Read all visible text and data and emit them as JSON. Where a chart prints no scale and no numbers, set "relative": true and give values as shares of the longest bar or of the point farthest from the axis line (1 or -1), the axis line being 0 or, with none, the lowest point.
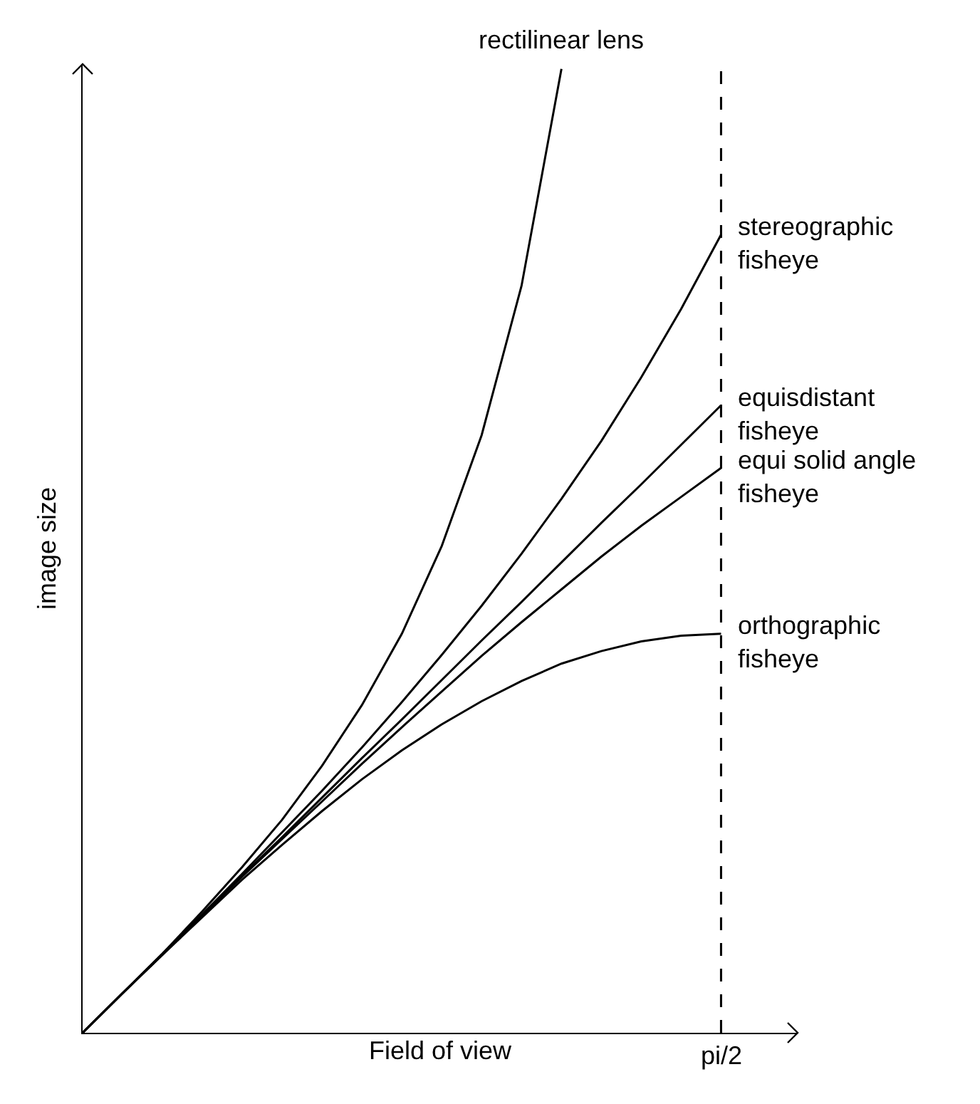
{
  "chart_data": {
    "type": "line",
    "relative": true,
    "xlabel": "Field of view",
    "ylabel": "image size",
    "categories": [
      null,
      null,
      null,
      null,
      null,
      null,
      null,
      null,
      null,
      null,
      null,
      null,
      null,
      null,
      null,
      null,
      null
    ],
    "ref_lines": [
      {
        "axis": "x",
        "label": "pi/2",
        "line_style": "dashed",
        "color": "#000000"
      }
    ],
    "marker": "none",
    "line_style": "solid",
    "grid": false,
    "legend": false,
    "series": [
      {
        "name": "rectilinear lens",
        "color": "#000000",
        "values": [
          0,
          0.041,
          0.082,
          0.126,
          0.172,
          0.221,
          0.277,
          0.34,
          0.414,
          0.505,
          0.62,
          0.775,
          1.0,
          null,
          null,
          null,
          null
        ]
      },
      {
        "name": "stereographic\nfisheye",
        "color": "#000000",
        "values": [
          0,
          0.041,
          0.082,
          0.123,
          0.165,
          0.208,
          0.251,
          0.296,
          0.343,
          0.392,
          0.443,
          0.497,
          0.554,
          0.614,
          0.68,
          0.751,
          0.828
        ]
      },
      {
        "name": "equisdistant\nfisheye",
        "color": "#000000",
        "values": [
          0,
          0.041,
          0.081,
          0.122,
          0.163,
          0.203,
          0.244,
          0.285,
          0.325,
          0.366,
          0.407,
          0.447,
          0.488,
          0.529,
          0.569,
          0.61,
          0.651
        ]
      },
      {
        "name": "equi solid angle\nfisheye",
        "color": "#000000",
        "values": [
          0,
          0.041,
          0.081,
          0.122,
          0.162,
          0.201,
          0.24,
          0.279,
          0.317,
          0.354,
          0.391,
          0.426,
          0.46,
          0.494,
          0.526,
          0.556,
          0.586
        ]
      },
      {
        "name": "orthographic\nfisheye",
        "color": "#000000",
        "values": [
          0,
          0.041,
          0.081,
          0.12,
          0.159,
          0.195,
          0.23,
          0.263,
          0.293,
          0.32,
          0.344,
          0.365,
          0.383,
          0.396,
          0.406,
          0.412,
          0.414
        ]
      }
    ]
  }
}
